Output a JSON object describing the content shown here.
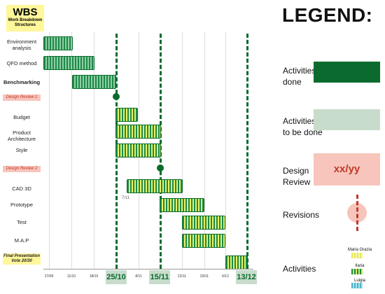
{
  "wbs": {
    "title": "WBS",
    "subtitle": "Work Breakdown Structures"
  },
  "rows": [
    {
      "label": "Environment analysis",
      "style": "normal"
    },
    {
      "label": "QFD method",
      "style": "normal"
    },
    {
      "label": "Benchmarking",
      "style": "bold"
    },
    {
      "label": "Design Review 1",
      "style": "review"
    },
    {
      "label": "Budget",
      "style": "normal"
    },
    {
      "label": "Product Architecture",
      "style": "normal"
    },
    {
      "label": "Style",
      "style": "normal"
    },
    {
      "label": "Design Review 2",
      "style": "review"
    },
    {
      "label": "CAD 3D",
      "style": "normal"
    },
    {
      "label": "Prototype",
      "style": "normal"
    },
    {
      "label": "Test",
      "style": "normal"
    },
    {
      "label": "M.A.P",
      "style": "normal"
    },
    {
      "label": "Final Presentation Vote 20/30",
      "style": "final"
    }
  ],
  "timeline": {
    "ticks": [
      "27/09",
      "11/10",
      "18/10",
      "8/11",
      "22/11",
      "29/11",
      "6/12"
    ],
    "milestones": [
      "25/10",
      "15/11",
      "13/12"
    ]
  },
  "note": "7/11",
  "legend": {
    "title": "LEGEND:",
    "done": "Activities done",
    "todo": "Activities to be done",
    "review": "Design Review",
    "review_badge": "xx/yy",
    "revisions": "Revisions",
    "activities": "Activities",
    "people": [
      "Maria Grazia",
      "Ilaria",
      "Luigia"
    ],
    "colors": {
      "done": "#0b6b2f",
      "todo": "#c8dccc",
      "review": "#f7c5bb"
    }
  }
}
